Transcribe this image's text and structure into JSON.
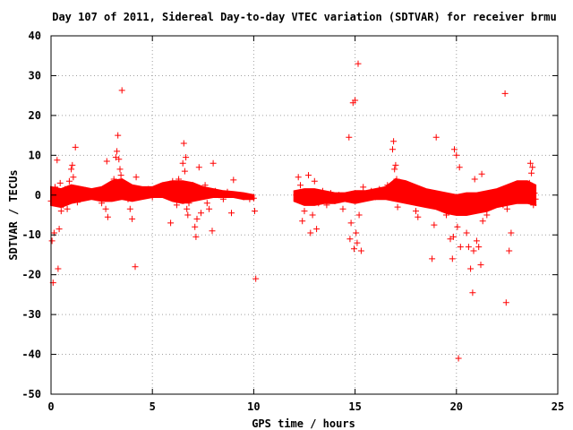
{
  "chart_data": {
    "type": "scatter",
    "title": "Day 107 of 2011, Sidereal Day-to-day VTEC variation (SDTVAR) for receiver brmu",
    "xlabel": "GPS time / hours",
    "ylabel": "SDTVAR / TECUs",
    "xlim": [
      0,
      25
    ],
    "ylim": [
      -50,
      40
    ],
    "x_ticks": [
      0,
      5,
      10,
      15,
      20,
      25
    ],
    "y_ticks": [
      -50,
      -40,
      -30,
      -20,
      -10,
      0,
      10,
      20,
      30,
      40
    ],
    "x_tick_labels": [
      "0",
      "5",
      "10",
      "15",
      "20",
      "25"
    ],
    "y_tick_labels": [
      "-50",
      "-40",
      "-30",
      "-20",
      "-10",
      "0",
      "10",
      "20",
      "30",
      "40"
    ],
    "grid": true,
    "marker": "plus",
    "color": "#ff0000",
    "series": [
      {
        "points": [
          [
            0.0,
            -1.5
          ],
          [
            0.05,
            -11.5
          ],
          [
            0.1,
            -22.0
          ],
          [
            0.15,
            -9.5
          ],
          [
            0.3,
            8.8
          ],
          [
            0.35,
            -18.5
          ],
          [
            0.4,
            -8.5
          ],
          [
            0.45,
            3.0
          ],
          [
            0.2,
            2.0
          ],
          [
            0.25,
            -2.0
          ],
          [
            0.5,
            -4.0
          ],
          [
            0.6,
            -2.5
          ],
          [
            0.7,
            1.5
          ],
          [
            0.8,
            -3.5
          ],
          [
            0.9,
            3.5
          ],
          [
            1.0,
            6.5
          ],
          [
            1.05,
            7.5
          ],
          [
            1.1,
            4.5
          ],
          [
            1.2,
            12.0
          ],
          [
            1.3,
            -1.8
          ],
          [
            1.5,
            0.5
          ],
          [
            1.7,
            1.2
          ],
          [
            1.9,
            0.8
          ],
          [
            2.1,
            -0.5
          ],
          [
            2.3,
            1.0
          ],
          [
            2.5,
            -2.0
          ],
          [
            2.7,
            -3.5
          ],
          [
            2.75,
            8.5
          ],
          [
            2.8,
            -5.5
          ],
          [
            3.0,
            1.5
          ],
          [
            3.1,
            4.0
          ],
          [
            3.2,
            9.5
          ],
          [
            3.25,
            11.0
          ],
          [
            3.3,
            15.0
          ],
          [
            3.35,
            9.0
          ],
          [
            3.4,
            6.5
          ],
          [
            3.45,
            5.0
          ],
          [
            3.5,
            26.3
          ],
          [
            3.6,
            3.0
          ],
          [
            3.7,
            0.5
          ],
          [
            3.8,
            -1.0
          ],
          [
            3.9,
            -3.5
          ],
          [
            4.0,
            -6.0
          ],
          [
            4.1,
            1.0
          ],
          [
            4.15,
            -18.0
          ],
          [
            4.2,
            4.5
          ],
          [
            4.4,
            1.0
          ],
          [
            4.6,
            0.0
          ],
          [
            4.8,
            1.5
          ],
          [
            5.0,
            -0.5
          ],
          [
            5.2,
            0.8
          ],
          [
            5.4,
            1.2
          ],
          [
            5.6,
            2.0
          ],
          [
            5.8,
            0.0
          ],
          [
            5.9,
            -7.0
          ],
          [
            6.0,
            3.5
          ],
          [
            6.1,
            2.0
          ],
          [
            6.2,
            -2.5
          ],
          [
            6.3,
            4.0
          ],
          [
            6.4,
            1.0
          ],
          [
            6.5,
            8.0
          ],
          [
            6.55,
            13.0
          ],
          [
            6.6,
            6.0
          ],
          [
            6.65,
            9.5
          ],
          [
            6.7,
            -3.5
          ],
          [
            6.75,
            -5.0
          ],
          [
            6.8,
            -2.0
          ],
          [
            7.0,
            2.5
          ],
          [
            7.1,
            -8.0
          ],
          [
            7.15,
            -10.5
          ],
          [
            7.2,
            -6.0
          ],
          [
            7.3,
            7.0
          ],
          [
            7.4,
            -4.5
          ],
          [
            7.5,
            0.5
          ],
          [
            7.6,
            2.5
          ],
          [
            7.7,
            -2.0
          ],
          [
            7.8,
            -3.5
          ],
          [
            7.9,
            0.5
          ],
          [
            7.95,
            -9.0
          ],
          [
            8.0,
            8.0
          ],
          [
            8.1,
            1.0
          ],
          [
            8.3,
            0.0
          ],
          [
            8.5,
            -1.0
          ],
          [
            8.7,
            0.8
          ],
          [
            8.9,
            -4.5
          ],
          [
            9.0,
            3.8
          ],
          [
            9.2,
            0.0
          ],
          [
            9.5,
            -0.5
          ],
          [
            9.8,
            -1.0
          ],
          [
            10.0,
            -0.8
          ],
          [
            10.05,
            -4.0
          ],
          [
            10.1,
            -21.0
          ],
          [
            12.1,
            0.0
          ],
          [
            12.2,
            4.5
          ],
          [
            12.3,
            2.5
          ],
          [
            12.4,
            -6.5
          ],
          [
            12.5,
            -4.0
          ],
          [
            12.6,
            -1.5
          ],
          [
            12.7,
            5.0
          ],
          [
            12.8,
            -9.5
          ],
          [
            12.9,
            -5.0
          ],
          [
            13.0,
            3.5
          ],
          [
            13.1,
            -8.5
          ],
          [
            13.2,
            -2.0
          ],
          [
            13.4,
            1.0
          ],
          [
            13.6,
            -2.5
          ],
          [
            13.8,
            0.5
          ],
          [
            14.0,
            -1.5
          ],
          [
            14.2,
            0.0
          ],
          [
            14.4,
            -3.5
          ],
          [
            14.6,
            -1.0
          ],
          [
            14.7,
            14.5
          ],
          [
            14.75,
            -11.0
          ],
          [
            14.8,
            -7.0
          ],
          [
            14.9,
            23.2
          ],
          [
            14.95,
            -13.5
          ],
          [
            15.0,
            23.8
          ],
          [
            15.05,
            -9.5
          ],
          [
            15.1,
            -12.0
          ],
          [
            15.15,
            33.0
          ],
          [
            15.2,
            -5.0
          ],
          [
            15.3,
            -14.0
          ],
          [
            15.4,
            2.0
          ],
          [
            15.6,
            -0.5
          ],
          [
            15.8,
            1.0
          ],
          [
            16.0,
            -0.5
          ],
          [
            16.2,
            1.5
          ],
          [
            16.4,
            0.5
          ],
          [
            16.6,
            2.5
          ],
          [
            16.8,
            1.5
          ],
          [
            16.85,
            11.5
          ],
          [
            16.9,
            13.5
          ],
          [
            16.95,
            6.5
          ],
          [
            17.0,
            7.5
          ],
          [
            17.05,
            4.0
          ],
          [
            17.1,
            -3.0
          ],
          [
            17.2,
            2.5
          ],
          [
            17.4,
            1.0
          ],
          [
            17.6,
            -1.0
          ],
          [
            17.8,
            0.5
          ],
          [
            18.0,
            -4.0
          ],
          [
            18.1,
            -5.5
          ],
          [
            18.2,
            -1.0
          ],
          [
            18.4,
            0.5
          ],
          [
            18.6,
            -2.0
          ],
          [
            18.8,
            -16.0
          ],
          [
            18.9,
            -7.5
          ],
          [
            19.0,
            14.5
          ],
          [
            19.1,
            -3.0
          ],
          [
            19.3,
            -1.5
          ],
          [
            19.5,
            -5.0
          ],
          [
            19.7,
            -11.0
          ],
          [
            19.8,
            -16.0
          ],
          [
            19.85,
            -10.5
          ],
          [
            19.9,
            11.5
          ],
          [
            20.0,
            10.0
          ],
          [
            20.05,
            -8.0
          ],
          [
            20.1,
            -41.0
          ],
          [
            20.15,
            7.0
          ],
          [
            20.2,
            -13.0
          ],
          [
            20.3,
            -2.5
          ],
          [
            20.5,
            -9.5
          ],
          [
            20.6,
            -13.0
          ],
          [
            20.7,
            -18.5
          ],
          [
            20.8,
            -24.5
          ],
          [
            20.85,
            -14.0
          ],
          [
            20.9,
            4.0
          ],
          [
            21.0,
            -11.5
          ],
          [
            21.1,
            -13.0
          ],
          [
            21.2,
            -17.5
          ],
          [
            21.25,
            5.3
          ],
          [
            21.3,
            -6.5
          ],
          [
            21.5,
            -5.0
          ],
          [
            21.7,
            -3.0
          ],
          [
            21.9,
            -1.5
          ],
          [
            22.1,
            0.0
          ],
          [
            22.3,
            -2.5
          ],
          [
            22.4,
            25.5
          ],
          [
            22.45,
            -27.0
          ],
          [
            22.5,
            -3.5
          ],
          [
            22.6,
            -14.0
          ],
          [
            22.7,
            -9.5
          ],
          [
            22.8,
            -1.5
          ],
          [
            23.0,
            0.0
          ],
          [
            23.2,
            1.0
          ],
          [
            23.4,
            2.0
          ],
          [
            23.6,
            3.0
          ],
          [
            23.65,
            8.0
          ],
          [
            23.7,
            5.5
          ],
          [
            23.75,
            7.0
          ],
          [
            23.8,
            -2.5
          ],
          [
            23.85,
            0.5
          ],
          [
            23.9,
            -1.0
          ]
        ]
      }
    ],
    "band_segments": [
      {
        "x": [
          0.0,
          0.5,
          1.0,
          1.5,
          2.0,
          2.5,
          3.0,
          3.5,
          4.0,
          4.5,
          5.0,
          5.5,
          6.0,
          6.5,
          7.0,
          7.5,
          8.0,
          8.5,
          9.0,
          9.5,
          10.0
        ],
        "upper": [
          2.0,
          1.5,
          2.5,
          2.0,
          1.5,
          2.0,
          3.5,
          4.0,
          2.5,
          2.0,
          2.0,
          3.0,
          3.5,
          3.5,
          3.0,
          2.0,
          1.5,
          1.0,
          0.8,
          0.5,
          0.0
        ],
        "lower": [
          -2.5,
          -3.0,
          -2.0,
          -1.5,
          -1.0,
          -1.5,
          -1.5,
          -1.0,
          -1.5,
          -1.0,
          -0.5,
          -0.5,
          -1.5,
          -2.0,
          -1.5,
          -1.0,
          -0.5,
          -0.5,
          -0.5,
          -1.0,
          -1.0
        ]
      },
      {
        "x": [
          12.0,
          12.5,
          13.0,
          13.5,
          14.0,
          14.5,
          15.0,
          15.5,
          16.0,
          16.5,
          17.0,
          17.5,
          18.0,
          18.5,
          19.0,
          19.5,
          20.0,
          20.5,
          21.0,
          21.5,
          22.0,
          22.5,
          23.0,
          23.5,
          23.9
        ],
        "upper": [
          1.0,
          1.5,
          1.5,
          1.0,
          0.5,
          0.5,
          1.0,
          1.0,
          1.5,
          2.0,
          4.0,
          3.5,
          2.5,
          1.5,
          1.0,
          0.5,
          0.0,
          0.5,
          0.5,
          1.0,
          1.5,
          2.5,
          3.5,
          3.5,
          2.5
        ],
        "lower": [
          -1.5,
          -2.5,
          -2.5,
          -2.0,
          -2.0,
          -1.5,
          -2.0,
          -1.5,
          -1.0,
          -1.0,
          -1.5,
          -2.0,
          -2.5,
          -3.0,
          -3.5,
          -4.5,
          -5.0,
          -5.0,
          -4.5,
          -4.0,
          -3.0,
          -2.5,
          -2.0,
          -2.0,
          -2.5
        ]
      }
    ]
  }
}
